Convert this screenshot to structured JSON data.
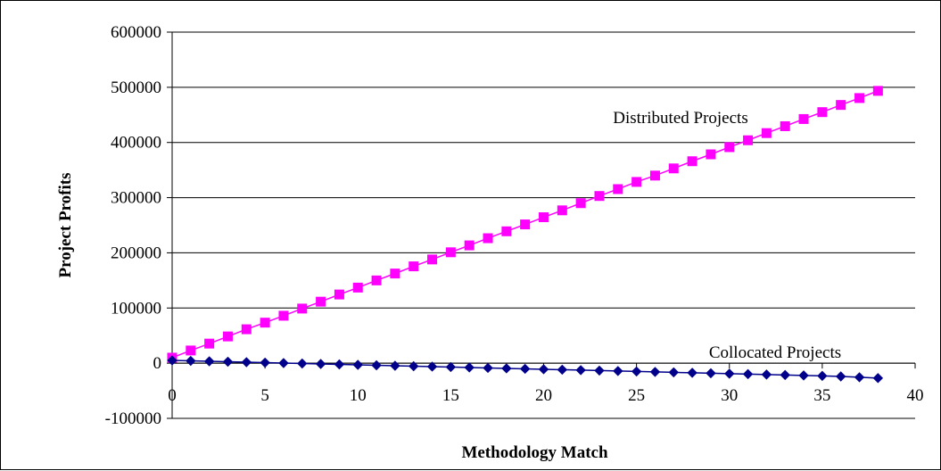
{
  "chart_data": {
    "type": "line",
    "title": "",
    "xlabel": "Methodology Match",
    "ylabel": "Project Profits",
    "xlim": [
      0,
      40
    ],
    "ylim": [
      -100000,
      600000
    ],
    "x_ticks": [
      0,
      5,
      10,
      15,
      20,
      25,
      30,
      35,
      40
    ],
    "y_ticks": [
      -100000,
      0,
      100000,
      200000,
      300000,
      400000,
      500000,
      600000
    ],
    "grid": "horizontal",
    "legend": "none",
    "annotations": [
      "Distributed Projects",
      "Collocated Projects"
    ],
    "series": [
      {
        "label": "Distributed Projects",
        "color": "#ff00ff",
        "marker": "square",
        "x": [
          0,
          1,
          2,
          3,
          4,
          5,
          6,
          7,
          8,
          9,
          10,
          11,
          12,
          13,
          14,
          15,
          16,
          17,
          18,
          19,
          20,
          21,
          22,
          23,
          24,
          25,
          26,
          27,
          28,
          29,
          30,
          31,
          32,
          33,
          34,
          35,
          36,
          37,
          38
        ],
        "values": [
          10000,
          23000,
          35500,
          48500,
          61500,
          73500,
          86000,
          99000,
          111500,
          124500,
          137000,
          150000,
          162500,
          175500,
          188000,
          201000,
          213500,
          226500,
          239000,
          251500,
          264500,
          277000,
          290000,
          303000,
          315500,
          328500,
          340000,
          353000,
          366000,
          378500,
          391500,
          404000,
          417000,
          429500,
          442500,
          455000,
          468000,
          480500,
          493500
        ]
      },
      {
        "label": "Collocated Projects",
        "color": "#00008b",
        "marker": "diamond",
        "x": [
          0,
          1,
          2,
          3,
          4,
          5,
          6,
          7,
          8,
          9,
          10,
          11,
          12,
          13,
          14,
          15,
          16,
          17,
          18,
          19,
          20,
          21,
          22,
          23,
          24,
          25,
          26,
          27,
          28,
          29,
          30,
          31,
          32,
          33,
          34,
          35,
          36,
          37,
          38
        ],
        "values": [
          5000,
          4200,
          3400,
          2600,
          1800,
          1000,
          200,
          -600,
          -1400,
          -2200,
          -3000,
          -3800,
          -4600,
          -5400,
          -6200,
          -7000,
          -7800,
          -8600,
          -9400,
          -10200,
          -11000,
          -11800,
          -12600,
          -13400,
          -14200,
          -15000,
          -15800,
          -16600,
          -17400,
          -18200,
          -19000,
          -19800,
          -20600,
          -21400,
          -22200,
          -23000,
          -24000,
          -25500,
          -27000
        ]
      }
    ]
  },
  "colors": {
    "distributed": "#ff00ff",
    "collocated": "#00008b",
    "axis": "#000000",
    "background": "#ffffff"
  }
}
